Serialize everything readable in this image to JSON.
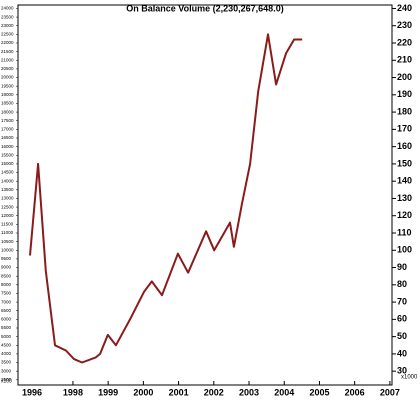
{
  "chart_data": {
    "type": "line",
    "title": "On Balance Volume (2,230,267,648.0)",
    "x": [
      1996.78,
      1997.01,
      1997.23,
      1997.49,
      1997.8,
      1998.03,
      1998.26,
      1998.65,
      1998.77,
      1998.99,
      1999.22,
      1999.62,
      2000.02,
      2000.24,
      2000.53,
      2000.98,
      2001.27,
      2001.78,
      2002.01,
      2002.46,
      2002.57,
      2002.8,
      2003.03,
      2003.26,
      2003.54,
      2003.77,
      2004.05,
      2004.28,
      2004.51
    ],
    "series": [
      {
        "name": "On Balance Volume",
        "color": "#8b1a1a",
        "values": [
          97,
          150,
          88,
          45,
          42,
          37,
          35,
          38,
          40,
          51,
          45,
          60,
          76,
          82,
          74,
          98,
          87,
          111,
          100,
          116,
          102,
          127,
          150,
          192,
          225,
          196,
          214,
          222,
          222
        ]
      }
    ],
    "xlim": [
      1996.44,
      2007.06
    ],
    "xticks": [
      1996,
      1998,
      1999,
      2000,
      2001,
      2002,
      2003,
      2004,
      2005,
      2006,
      2007
    ],
    "ylim": [
      22,
      242
    ],
    "yticks": [
      30,
      40,
      50,
      60,
      70,
      80,
      90,
      100,
      110,
      120,
      130,
      140,
      150,
      160,
      170,
      180,
      190,
      200,
      210,
      220,
      230,
      240
    ],
    "y2lim": [
      2200,
      24200
    ],
    "y2ticks": [
      2500,
      3000,
      3500,
      4000,
      4500,
      5000,
      5500,
      6000,
      6500,
      7000,
      7500,
      8000,
      8500,
      9000,
      9500,
      10000,
      10500,
      11000,
      11500,
      12000,
      12500,
      13000,
      13500,
      14000,
      14500,
      15000,
      15500,
      16000,
      16500,
      17000,
      17500,
      18000,
      18500,
      19000,
      19500,
      20000,
      20500,
      21000,
      21500,
      22000,
      22500,
      23000,
      23500,
      24000
    ],
    "annotations": [
      "x1000",
      "x100"
    ]
  }
}
